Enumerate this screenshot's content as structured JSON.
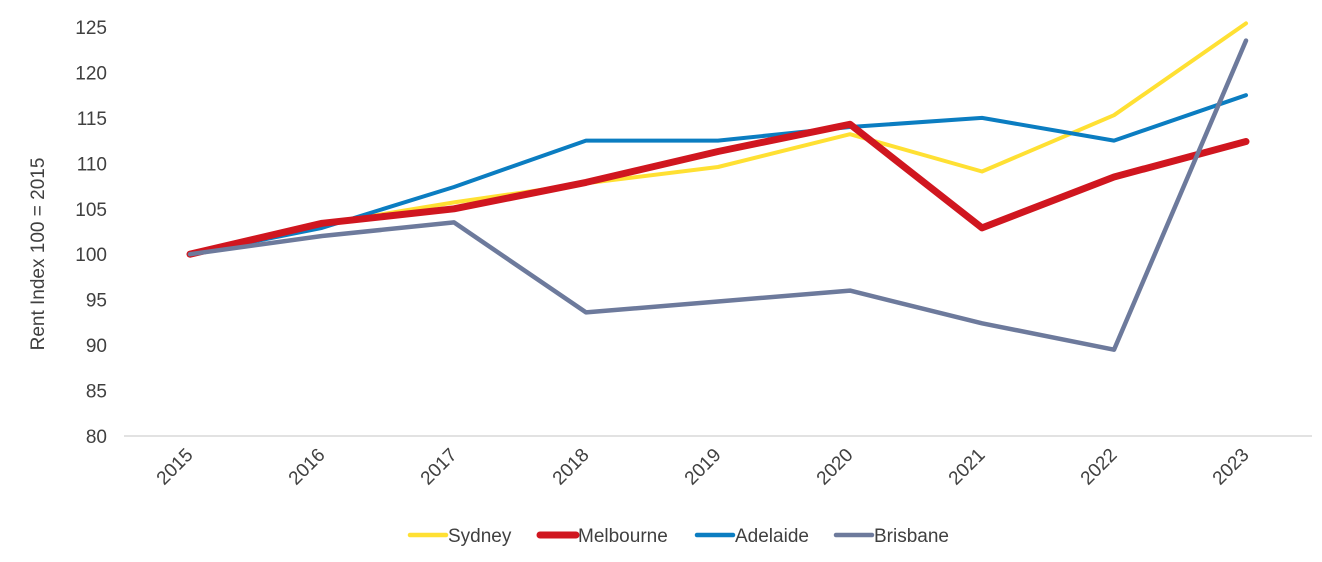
{
  "chart_data": {
    "type": "line",
    "ylabel": "Rent Index 100 = 2015",
    "xlabel": "",
    "ylim": [
      80,
      125
    ],
    "yticks": [
      80,
      85,
      90,
      95,
      100,
      105,
      110,
      115,
      120,
      125
    ],
    "categories": [
      "2015",
      "2016",
      "2017",
      "2018",
      "2019",
      "2020",
      "2021",
      "2022",
      "2023"
    ],
    "grid": false,
    "legend_position": "bottom",
    "series": [
      {
        "name": "Sydney",
        "color": "#FFE033",
        "values": [
          100,
          103.3,
          105.7,
          107.8,
          109.6,
          113.2,
          109.1,
          115.3,
          125.4
        ]
      },
      {
        "name": "Melbourne",
        "color": "#D0161F",
        "values": [
          100,
          103.4,
          105.0,
          107.9,
          111.3,
          114.3,
          102.9,
          108.5,
          112.4
        ]
      },
      {
        "name": "Adelaide",
        "color": "#0B7DC1",
        "values": [
          100,
          102.9,
          107.4,
          112.5,
          112.5,
          114.0,
          115.0,
          112.5,
          117.5
        ]
      },
      {
        "name": "Brisbane",
        "color": "#6D7A9C",
        "values": [
          100,
          102.0,
          103.5,
          93.6,
          94.8,
          96.0,
          92.4,
          89.5,
          123.5
        ]
      }
    ]
  }
}
